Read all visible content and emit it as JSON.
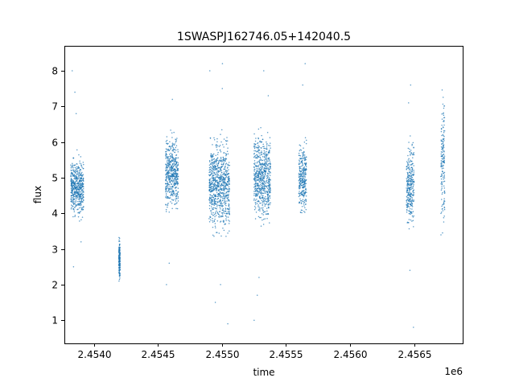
{
  "chart_data": {
    "type": "scatter",
    "title": "1SWASPJ162746.05+142040.5",
    "xlabel": "time",
    "ylabel": "flux",
    "x_offset_label": "1e6",
    "xlim": [
      2453770,
      2456880
    ],
    "ylim": [
      0.35,
      8.7
    ],
    "grid": false,
    "point_color": "#1f77b4",
    "x_ticks": [
      {
        "value": 2454000,
        "label": "2.4540"
      },
      {
        "value": 2454500,
        "label": "2.4545"
      },
      {
        "value": 2455000,
        "label": "2.4550"
      },
      {
        "value": 2455500,
        "label": "2.4555"
      },
      {
        "value": 2456000,
        "label": "2.4560"
      },
      {
        "value": 2456500,
        "label": "2.4565"
      }
    ],
    "y_ticks": [
      {
        "value": 1,
        "label": "1"
      },
      {
        "value": 2,
        "label": "2"
      },
      {
        "value": 3,
        "label": "3"
      },
      {
        "value": 4,
        "label": "4"
      },
      {
        "value": 5,
        "label": "5"
      },
      {
        "value": 6,
        "label": "6"
      },
      {
        "value": 7,
        "label": "7"
      },
      {
        "value": 8,
        "label": "8"
      }
    ],
    "clusters": [
      {
        "t_start": 2453820,
        "t_end": 2453920,
        "flux_low": 3.5,
        "flux_high": 6.0,
        "flux_outliers": [
          6.8,
          7.4,
          8.0,
          2.5,
          3.2
        ]
      },
      {
        "t_start": 2454195,
        "t_end": 2454205,
        "flux_low": 1.8,
        "flux_high": 3.6,
        "flux_outliers": [
          2.1
        ]
      },
      {
        "t_start": 2454560,
        "t_end": 2454660,
        "flux_low": 3.4,
        "flux_high": 6.8,
        "flux_outliers": [
          7.2,
          2.0,
          2.6
        ]
      },
      {
        "t_start": 2454900,
        "t_end": 2455060,
        "flux_low": 2.8,
        "flux_high": 6.8,
        "flux_outliers": [
          8.2,
          7.5,
          0.9,
          1.5,
          2.0,
          8.0
        ]
      },
      {
        "t_start": 2455250,
        "t_end": 2455380,
        "flux_low": 3.1,
        "flux_high": 6.9,
        "flux_outliers": [
          8.0,
          7.3,
          1.0,
          2.2,
          1.7
        ]
      },
      {
        "t_start": 2455600,
        "t_end": 2455660,
        "flux_low": 3.4,
        "flux_high": 6.6,
        "flux_outliers": [
          8.2,
          7.6
        ]
      },
      {
        "t_start": 2456440,
        "t_end": 2456500,
        "flux_low": 3.0,
        "flux_high": 6.6,
        "flux_outliers": [
          7.6,
          7.1,
          0.8,
          2.4
        ]
      },
      {
        "t_start": 2456710,
        "t_end": 2456740,
        "flux_low": 2.4,
        "flux_high": 8.3,
        "flux_outliers": []
      }
    ]
  }
}
